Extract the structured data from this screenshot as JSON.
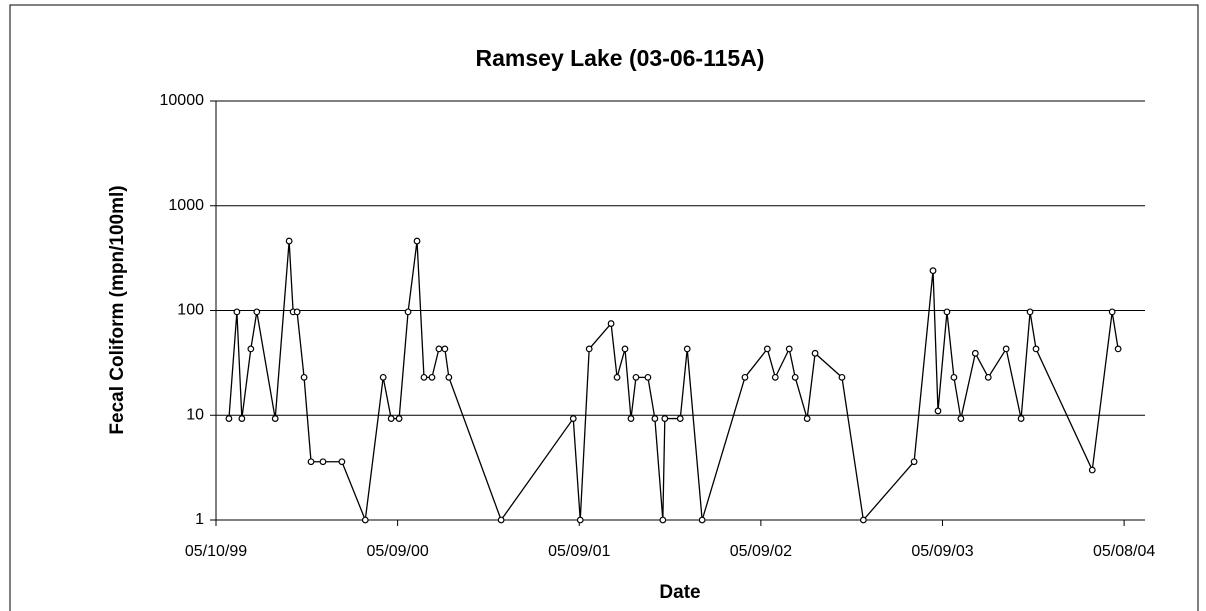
{
  "chart_data": {
    "type": "line",
    "title": "Ramsey Lake (03-06-115A)",
    "xlabel": "Date",
    "ylabel": "Fecal Coliform (mpn/100ml)",
    "x": [
      "1999-06-05",
      "1999-06-21",
      "1999-07-01",
      "1999-07-19",
      "1999-07-31",
      "1999-09-06",
      "1999-10-04",
      "1999-10-12",
      "1999-10-20",
      "1999-11-03",
      "1999-11-17",
      "1999-12-11",
      "2000-01-18",
      "2000-03-05",
      "2000-04-10",
      "2000-04-26",
      "2000-05-12",
      "2000-05-30",
      "2000-06-17",
      "2000-07-01",
      "2000-07-17",
      "2000-07-31",
      "2000-08-12",
      "2000-08-20",
      "2000-12-03",
      "2001-04-27",
      "2001-05-11",
      "2001-05-29",
      "2001-07-12",
      "2001-07-24",
      "2001-08-09",
      "2001-08-21",
      "2001-08-31",
      "2001-09-24",
      "2001-10-08",
      "2001-10-24",
      "2001-10-28",
      "2001-11-28",
      "2001-12-12",
      "2002-01-11",
      "2002-04-07",
      "2002-05-22",
      "2002-06-07",
      "2002-07-05",
      "2002-07-17",
      "2002-08-10",
      "2002-08-26",
      "2002-10-19",
      "2002-12-01",
      "2003-03-13",
      "2003-04-20",
      "2003-04-30",
      "2003-05-18",
      "2003-06-01",
      "2003-06-15",
      "2003-07-14",
      "2003-08-09",
      "2003-09-14",
      "2003-10-14",
      "2003-11-01",
      "2003-11-13",
      "2004-03-05",
      "2004-04-14",
      "2004-04-26"
    ],
    "values": [
      9.3,
      97,
      9.3,
      43,
      97,
      9.3,
      460,
      97,
      97,
      23,
      3.6,
      3.6,
      3.6,
      1,
      23,
      9.3,
      9.3,
      97,
      460,
      23,
      23,
      43,
      43,
      23,
      1,
      9.3,
      1,
      43,
      75,
      23,
      43,
      9.3,
      23,
      23,
      9.3,
      1,
      9.3,
      9.3,
      43,
      1,
      23,
      43,
      23,
      43,
      23,
      9.3,
      39,
      23,
      1,
      3.6,
      240,
      11,
      97,
      23,
      9.3,
      39,
      23,
      43,
      9.3,
      97,
      43,
      3,
      97,
      43
    ],
    "color": "#000000",
    "xlim": [
      "1999-05-10",
      "2004-06-19"
    ],
    "xticks": [
      {
        "value": "1999-05-10",
        "label": "05/10/99"
      },
      {
        "value": "2000-05-09",
        "label": "05/09/00"
      },
      {
        "value": "2001-05-09",
        "label": "05/09/01"
      },
      {
        "value": "2002-05-09",
        "label": "05/09/02"
      },
      {
        "value": "2003-05-09",
        "label": "05/09/03"
      },
      {
        "value": "2004-05-08",
        "label": "05/08/04"
      }
    ],
    "ylim": [
      1,
      10000
    ],
    "yticks": [
      1,
      10,
      100,
      1000,
      10000
    ],
    "log_y": true,
    "grid": true
  }
}
